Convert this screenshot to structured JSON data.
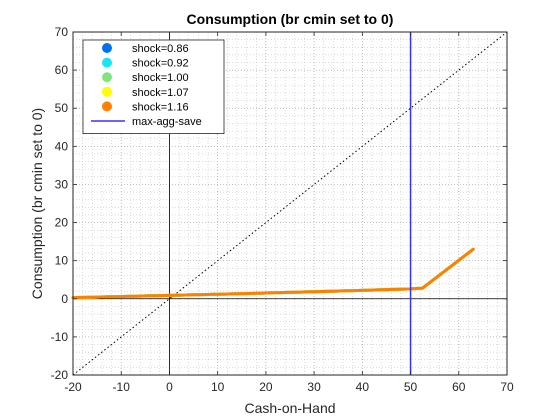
{
  "chart_data": {
    "type": "line",
    "title": "Consumption (br cmin set to 0)",
    "xlabel": "Cash-on-Hand",
    "ylabel": "Consumption (br cmin set to 0)",
    "xlim": [
      -20,
      70
    ],
    "ylim": [
      -20,
      70
    ],
    "xticks": [
      -20,
      -10,
      0,
      10,
      20,
      30,
      40,
      50,
      60,
      70
    ],
    "yticks": [
      -20,
      -10,
      0,
      10,
      20,
      30,
      40,
      50,
      60,
      70
    ],
    "grid": "major and minor (dotted)",
    "legend_position": "top-left",
    "reference_lines": {
      "x_zero": true,
      "y_zero": true,
      "diagonal_45": true
    },
    "series": [
      {
        "name": "shock=0.86",
        "color": "#0072f0",
        "marker": "circle",
        "x": [
          -20,
          0,
          20,
          40,
          50,
          52.5,
          63
        ],
        "y": [
          0.3,
          0.9,
          1.5,
          2.2,
          2.6,
          2.8,
          13.0
        ]
      },
      {
        "name": "shock=0.92",
        "color": "#19e6f0",
        "marker": "circle",
        "x": [
          -20,
          0,
          20,
          40,
          50,
          52.5,
          63
        ],
        "y": [
          0.3,
          0.9,
          1.5,
          2.2,
          2.6,
          2.8,
          13.0
        ]
      },
      {
        "name": "shock=1.00",
        "color": "#7fe67f",
        "marker": "circle",
        "x": [
          -20,
          0,
          20,
          40,
          50,
          52.5,
          63
        ],
        "y": [
          0.3,
          0.9,
          1.5,
          2.2,
          2.6,
          2.8,
          13.0
        ]
      },
      {
        "name": "shock=1.07",
        "color": "#ffff00",
        "marker": "circle",
        "x": [
          -20,
          0,
          20,
          40,
          50,
          52.5,
          63
        ],
        "y": [
          0.3,
          0.9,
          1.5,
          2.2,
          2.6,
          2.8,
          13.0
        ]
      },
      {
        "name": "shock=1.16",
        "color": "#ff8000",
        "marker": "circle",
        "x": [
          -20,
          0,
          20,
          40,
          50,
          52.5,
          63
        ],
        "y": [
          0.3,
          0.9,
          1.5,
          2.2,
          2.6,
          2.8,
          13.0
        ]
      }
    ],
    "vertical_line": {
      "name": "max-agg-save",
      "color": "#3333ff",
      "x": 50
    }
  }
}
